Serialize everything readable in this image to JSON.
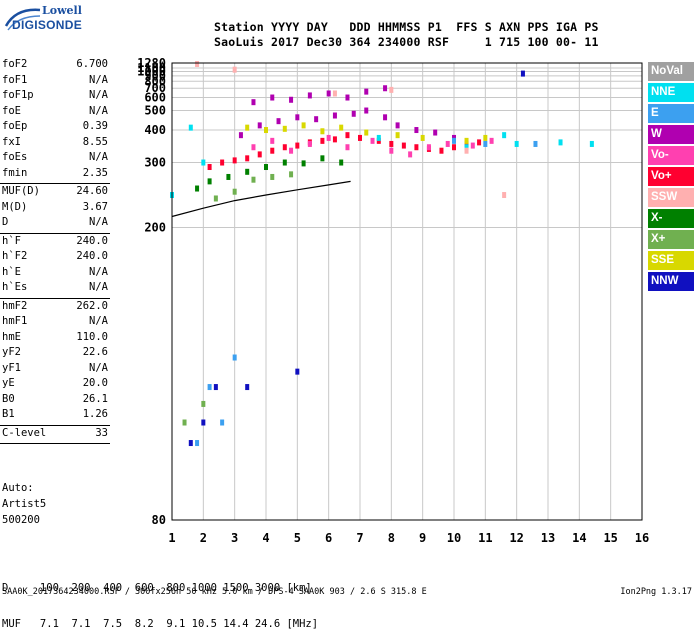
{
  "logo": {
    "line1": "Lowell",
    "line2": "DIGISONDE"
  },
  "header": {
    "labels": "Station YYYY DAY   DDD HHMMSS P1  FFS S AXN PPS IGA PS",
    "values": "SaoLuis 2017 Dec30 364 234000 RSF     1 715 100 00- 11"
  },
  "params": [
    {
      "key": "foF2",
      "value": "6.700"
    },
    {
      "key": "foF1",
      "value": "N/A"
    },
    {
      "key": "foF1p",
      "value": "N/A"
    },
    {
      "key": "foE",
      "value": "N/A"
    },
    {
      "key": "foEp",
      "value": "0.39"
    },
    {
      "key": "fxI",
      "value": "8.55"
    },
    {
      "key": "foEs",
      "value": "N/A"
    },
    {
      "key": "fmin",
      "value": "2.35"
    },
    {
      "key": "MUF(D)",
      "value": "24.60",
      "sep": true
    },
    {
      "key": "M(D)",
      "value": "3.67"
    },
    {
      "key": "D",
      "value": "N/A"
    },
    {
      "key": "h`F",
      "value": "240.0",
      "sep": true
    },
    {
      "key": "h`F2",
      "value": "240.0"
    },
    {
      "key": "h`E",
      "value": "N/A"
    },
    {
      "key": "h`Es",
      "value": "N/A"
    },
    {
      "key": "hmF2",
      "value": "262.0",
      "sep": true
    },
    {
      "key": "hmF1",
      "value": "N/A"
    },
    {
      "key": "hmE",
      "value": "110.0"
    },
    {
      "key": "yF2",
      "value": "22.6"
    },
    {
      "key": "yF1",
      "value": "N/A"
    },
    {
      "key": "yE",
      "value": "20.0"
    },
    {
      "key": "B0",
      "value": "26.1"
    },
    {
      "key": "B1",
      "value": "1.26"
    },
    {
      "key": "C-level",
      "value": "33",
      "sep": true
    }
  ],
  "scaling": {
    "line1": "Auto:",
    "line2": "Artist5",
    "line3": "500200"
  },
  "legend": [
    {
      "label": "NoVal",
      "color": "#a0a0a0"
    },
    {
      "label": "NNE",
      "color": "#00e0f0"
    },
    {
      "label": "E",
      "color": "#3ca0f0"
    },
    {
      "label": "W",
      "color": "#b000b0"
    },
    {
      "label": "Vo-",
      "color": "#ff40b0"
    },
    {
      "label": "Vo+",
      "color": "#ff0030"
    },
    {
      "label": "SSW",
      "color": "#ffb0b0"
    },
    {
      "label": "X-",
      "color": "#008000"
    },
    {
      "label": "X+",
      "color": "#70b050"
    },
    {
      "label": "SSE",
      "color": "#d8d800"
    },
    {
      "label": "NNW",
      "color": "#1010c0"
    }
  ],
  "bottom": {
    "d_line": "D     100  200  400  600  800 1000 1500 3000 [km]",
    "muf_line": "MUF   7.1  7.1  7.5  8.2  9.1 10.5 14.4 24.6 [MHz]"
  },
  "footer": "SAA0K_2017364234000.RSF / 300fx256h 50 kHz 5.0 km / DPS-4 SAA0K 903 / 2.6 S 315.8 E",
  "version": "Ion2Png 1.3.17",
  "chart_data": {
    "type": "scatter",
    "title": "",
    "xlabel": "",
    "ylabel": "",
    "x_ticks": [
      "1",
      "2",
      "3",
      "4",
      "5",
      "6",
      "7",
      "8",
      "9",
      "10",
      "11",
      "12",
      "13",
      "14",
      "15",
      "16"
    ],
    "y_ticks": [
      "80",
      "200",
      "300",
      "400",
      "500",
      "600",
      "700",
      "800",
      "900",
      "1000",
      "1100",
      "1280"
    ],
    "xlim": [
      1,
      16
    ],
    "ylim": [
      80,
      1280
    ],
    "y_scale": "reciprocal",
    "grid": true,
    "legend_position": "right",
    "trace": {
      "name": "",
      "x": [
        1.0,
        2.0,
        3.0,
        4.0,
        5.0,
        6.0,
        6.7
      ],
      "y": [
        212,
        222,
        232,
        240,
        248,
        256,
        262
      ]
    },
    "series": [
      {
        "color_key": "Vo+",
        "x": [
          2.2,
          2.6,
          3.0,
          3.4,
          3.8,
          4.2,
          4.6,
          5.0,
          5.4,
          5.8,
          6.2,
          6.6,
          7.0,
          7.6,
          8.0,
          8.4,
          8.8,
          9.2,
          9.6,
          10.0,
          10.4,
          10.8
        ],
        "y": [
          290,
          300,
          305,
          310,
          320,
          330,
          340,
          345,
          355,
          360,
          365,
          380,
          370,
          360,
          350,
          345,
          340,
          335,
          330,
          340,
          350,
          355
        ]
      },
      {
        "color_key": "W",
        "x": [
          3.2,
          3.8,
          4.4,
          5.0,
          5.6,
          6.2,
          6.8,
          7.2,
          7.8,
          8.2,
          8.8,
          9.4,
          10.0
        ],
        "y": [
          380,
          420,
          440,
          460,
          450,
          470,
          480,
          500,
          460,
          420,
          400,
          390,
          370
        ]
      },
      {
        "color_key": "Vo-",
        "x": [
          3.6,
          4.2,
          4.8,
          5.4,
          6.0,
          6.6,
          7.4,
          8.0,
          8.6,
          9.2,
          9.8,
          10.6,
          11.2
        ],
        "y": [
          340,
          360,
          330,
          350,
          370,
          340,
          360,
          330,
          320,
          340,
          350,
          345,
          360
        ]
      },
      {
        "color_key": "SSE",
        "x": [
          3.4,
          4.0,
          4.6,
          5.2,
          5.8,
          6.4,
          7.2,
          8.2,
          9.0,
          10.4,
          11.0
        ],
        "y": [
          410,
          400,
          405,
          420,
          395,
          410,
          390,
          380,
          370,
          360,
          370
        ]
      },
      {
        "color_key": "W",
        "x": [
          3.6,
          4.2,
          4.8,
          5.4,
          6.0,
          6.6,
          7.2,
          7.8
        ],
        "y": [
          560,
          600,
          580,
          620,
          640,
          600,
          660,
          700
        ]
      },
      {
        "color_key": "NNE",
        "x": [
          1.0,
          1.6,
          2.0,
          7.6,
          10.4,
          11.6,
          12.0,
          13.4,
          14.4
        ],
        "y": [
          240,
          410,
          300,
          370,
          340,
          380,
          350,
          355,
          350
        ]
      },
      {
        "color_key": "X-",
        "x": [
          1.8,
          2.2,
          2.8,
          3.4,
          4.0,
          4.6,
          5.2,
          5.8,
          6.4
        ],
        "y": [
          250,
          262,
          270,
          280,
          290,
          300,
          298,
          310,
          300
        ]
      },
      {
        "color_key": "X+",
        "x": [
          1.4,
          2.0,
          2.4,
          3.0,
          3.6,
          4.2,
          4.8
        ],
        "y": [
          100,
          105,
          235,
          245,
          265,
          270,
          275
        ]
      },
      {
        "color_key": "NNW",
        "x": [
          1.6,
          2.0,
          2.4,
          12.2,
          3.4,
          5.0
        ],
        "y": [
          95,
          100,
          110,
          950,
          110,
          115
        ]
      },
      {
        "color_key": "E",
        "x": [
          1.8,
          2.2,
          2.6,
          3.0,
          10.0,
          11.0,
          12.6
        ],
        "y": [
          95,
          110,
          100,
          120,
          360,
          350,
          350
        ]
      },
      {
        "color_key": "SSW",
        "x": [
          1.8,
          3.0,
          6.2,
          8.0,
          10.4,
          11.6
        ],
        "y": [
          1240,
          1050,
          640,
          680,
          330,
          240
        ]
      }
    ]
  }
}
